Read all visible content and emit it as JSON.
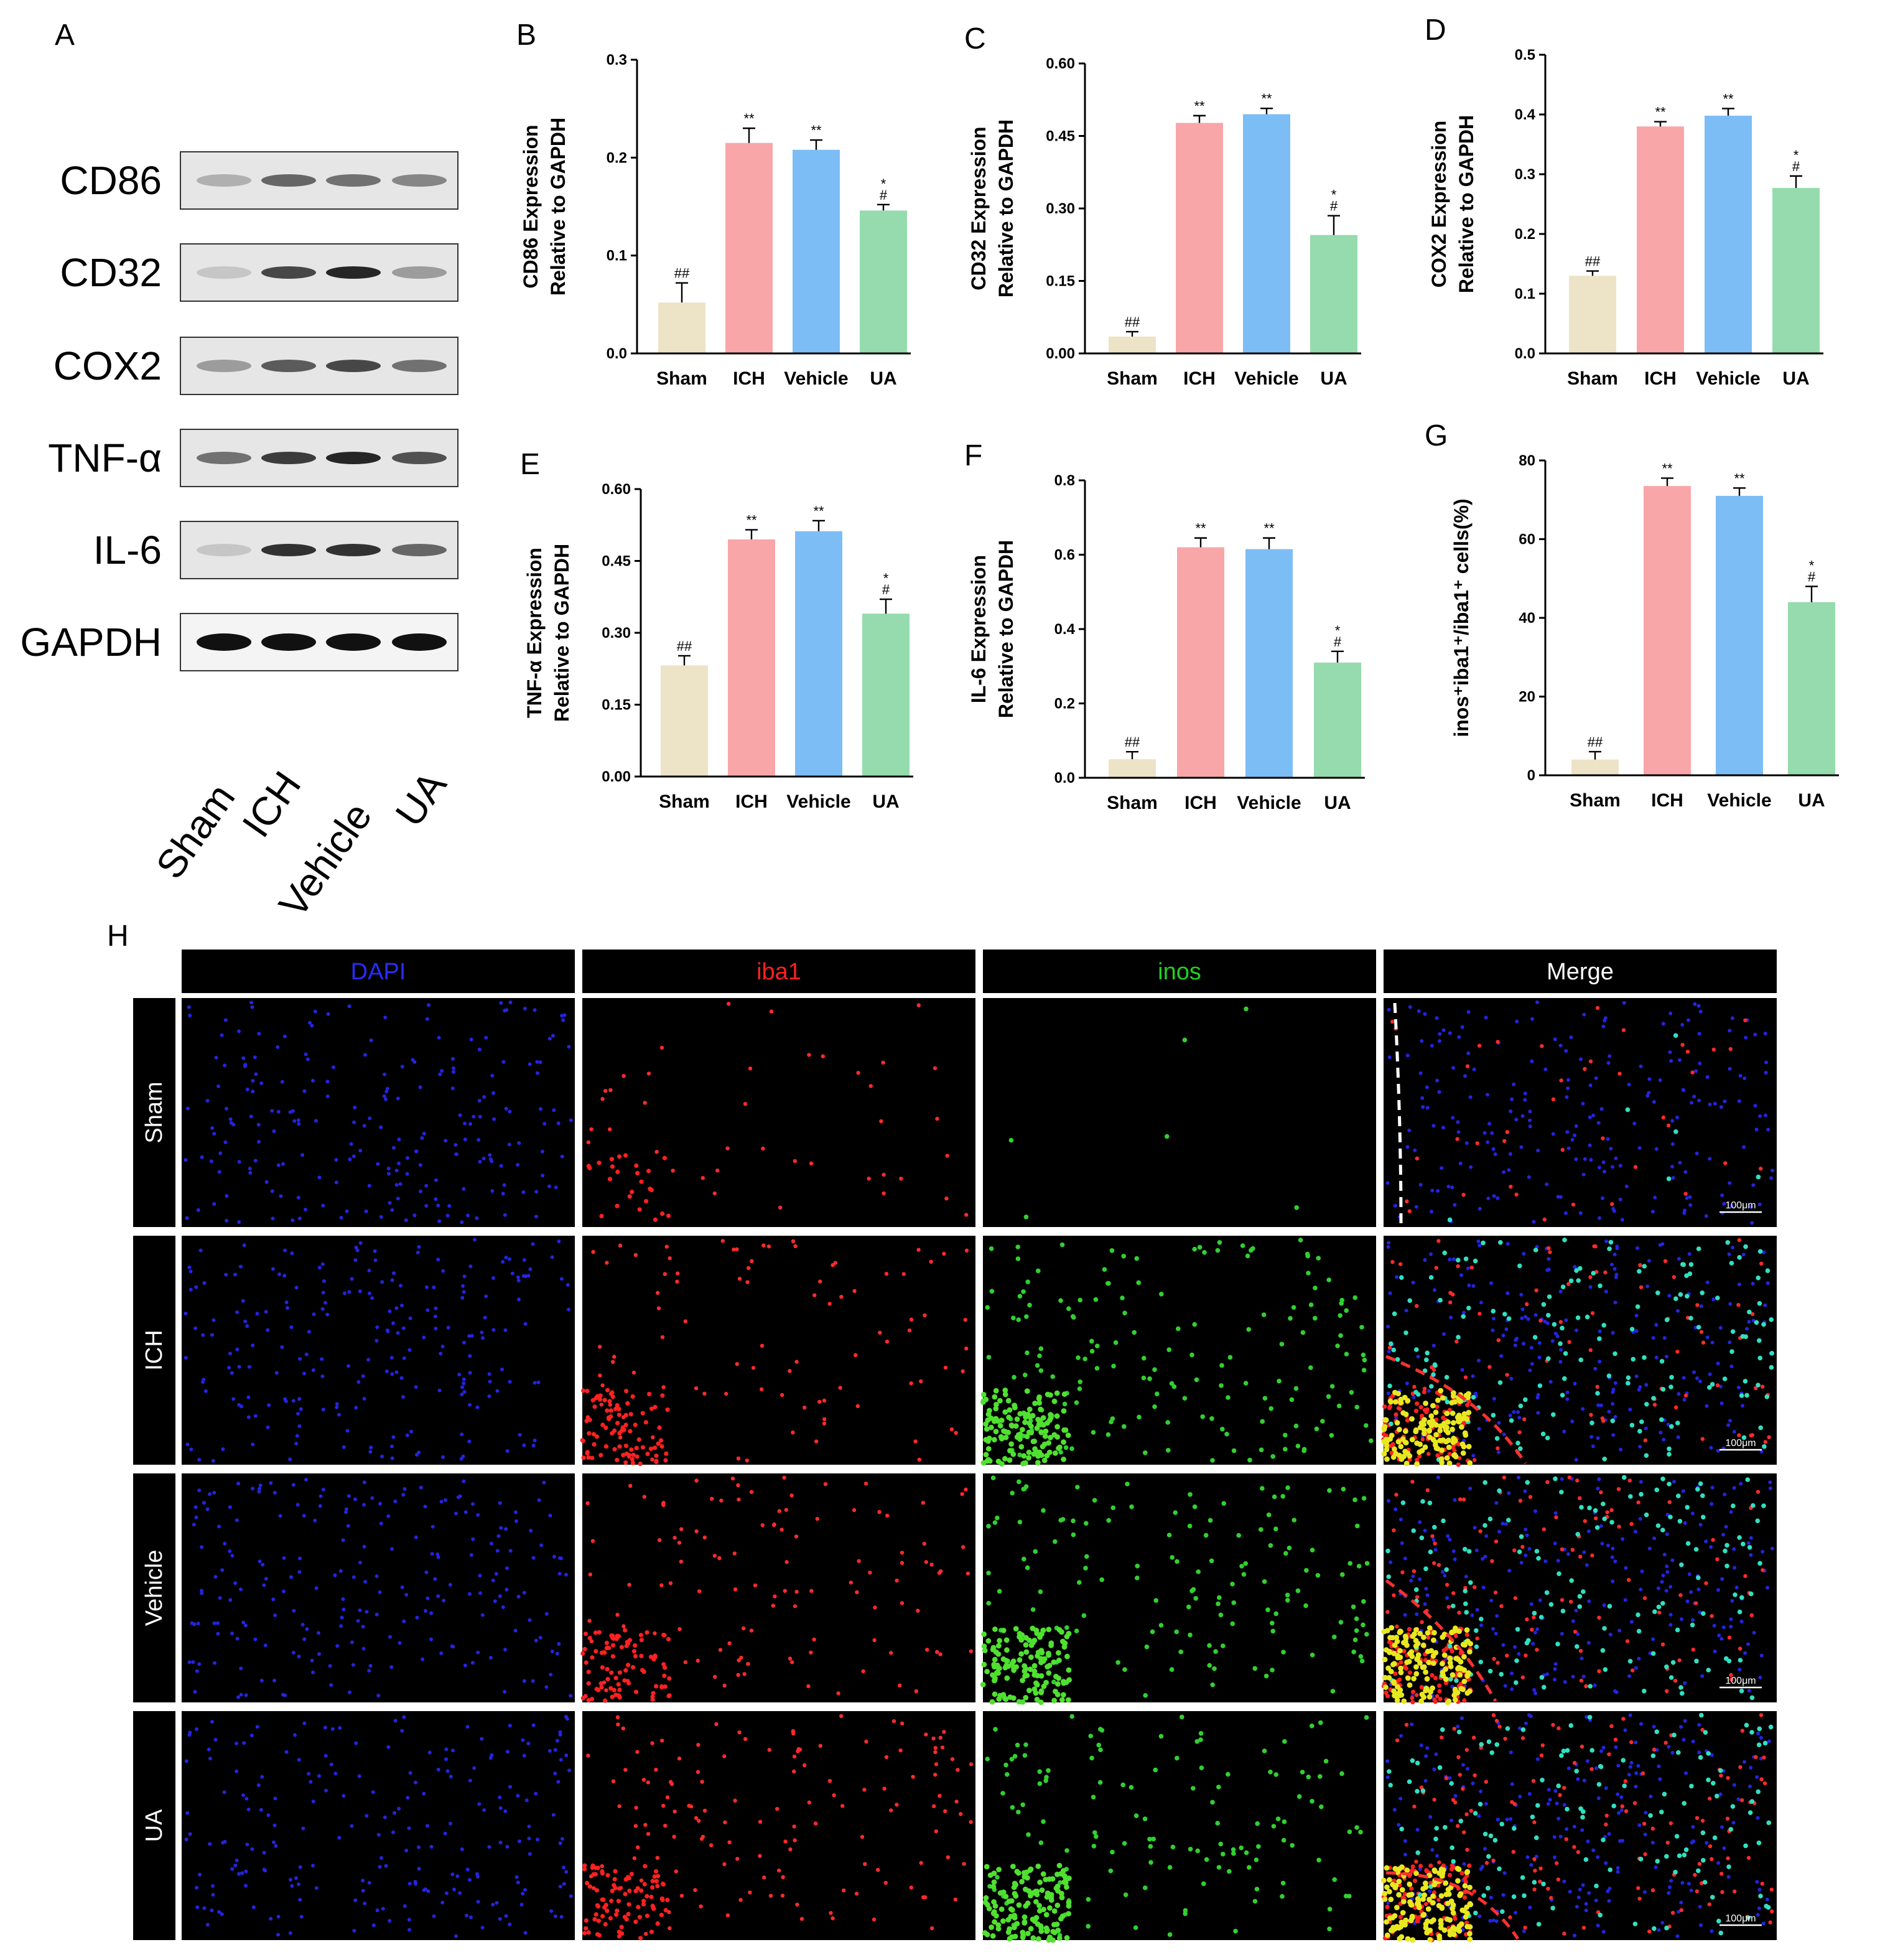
{
  "western_blot": {
    "label": "A",
    "proteins": [
      "CD86",
      "CD32",
      "COX2",
      "TNF-α",
      "IL-6",
      "GAPDH"
    ],
    "lanes": [
      "Sham",
      "ICH",
      "Vehicle",
      "UA"
    ]
  },
  "chart_data": [
    {
      "type": "bar",
      "panel": "B",
      "ylabel": [
        "CD86 Expression",
        "Relative to GAPDH"
      ],
      "categories": [
        "Sham",
        "ICH",
        "Vehicle",
        "UA"
      ],
      "colors": [
        "#ede3c6",
        "#f9a6a9",
        "#7dbdf6",
        "#95dbad"
      ],
      "values": [
        0.052,
        0.215,
        0.208,
        0.146
      ],
      "errors": [
        0.02,
        0.015,
        0.01,
        0.006
      ],
      "annotations": [
        [
          "##"
        ],
        [
          "**"
        ],
        [
          "**"
        ],
        [
          "*",
          "#"
        ]
      ],
      "ylim": [
        0,
        0.3
      ],
      "yticks": [
        {
          "value": 0,
          "label": "0.0"
        },
        0.1,
        0.2,
        0.3
      ]
    },
    {
      "type": "bar",
      "panel": "C",
      "ylabel": [
        "CD32 Expression",
        "Relative to GAPDH"
      ],
      "categories": [
        "Sham",
        "ICH",
        "Vehicle",
        "UA"
      ],
      "colors": [
        "#ede3c6",
        "#f9a6a9",
        "#7dbdf6",
        "#95dbad"
      ],
      "values": [
        0.035,
        0.477,
        0.495,
        0.245
      ],
      "errors": [
        0.01,
        0.015,
        0.012,
        0.04
      ],
      "annotations": [
        [
          "##"
        ],
        [
          "**"
        ],
        [
          "**"
        ],
        [
          "*",
          "#"
        ]
      ],
      "ylim": [
        0,
        0.6
      ],
      "yticks": [
        {
          "value": 0,
          "label": "0.00"
        },
        {
          "value": 0.15,
          "label": "0.15"
        },
        {
          "value": 0.3,
          "label": "0.30"
        },
        {
          "value": 0.45,
          "label": "0.45"
        },
        {
          "value": 0.6,
          "label": "0.60"
        }
      ]
    },
    {
      "type": "bar",
      "panel": "D",
      "ylabel": [
        "COX2 Expression",
        "Relative to GAPDH"
      ],
      "categories": [
        "Sham",
        "ICH",
        "Vehicle",
        "UA"
      ],
      "colors": [
        "#ede3c6",
        "#f9a6a9",
        "#7dbdf6",
        "#95dbad"
      ],
      "values": [
        0.13,
        0.38,
        0.398,
        0.277
      ],
      "errors": [
        0.008,
        0.008,
        0.012,
        0.02
      ],
      "annotations": [
        [
          "##"
        ],
        [
          "**"
        ],
        [
          "**"
        ],
        [
          "*",
          "#"
        ]
      ],
      "ylim": [
        0,
        0.5
      ],
      "yticks": [
        {
          "value": 0,
          "label": "0.0"
        },
        0.1,
        0.2,
        0.3,
        0.4,
        0.5
      ]
    },
    {
      "type": "bar",
      "panel": "E",
      "ylabel": [
        "TNF-α Expression",
        "Relative to GAPDH"
      ],
      "categories": [
        "Sham",
        "ICH",
        "Vehicle",
        "UA"
      ],
      "colors": [
        "#ede3c6",
        "#f9a6a9",
        "#7dbdf6",
        "#95dbad"
      ],
      "values": [
        0.232,
        0.495,
        0.512,
        0.34
      ],
      "errors": [
        0.02,
        0.02,
        0.022,
        0.03
      ],
      "annotations": [
        [
          "##"
        ],
        [
          "**"
        ],
        [
          "**"
        ],
        [
          "*",
          "#"
        ]
      ],
      "ylim": [
        0,
        0.6
      ],
      "yticks": [
        {
          "value": 0,
          "label": "0.00"
        },
        {
          "value": 0.15,
          "label": "0.15"
        },
        {
          "value": 0.3,
          "label": "0.30"
        },
        {
          "value": 0.45,
          "label": "0.45"
        },
        {
          "value": 0.6,
          "label": "0.60"
        }
      ]
    },
    {
      "type": "bar",
      "panel": "F",
      "ylabel": [
        "IL-6 Expression",
        "Relative to GAPDH"
      ],
      "categories": [
        "Sham",
        "ICH",
        "Vehicle",
        "UA"
      ],
      "colors": [
        "#ede3c6",
        "#f9a6a9",
        "#7dbdf6",
        "#95dbad"
      ],
      "values": [
        0.05,
        0.62,
        0.615,
        0.31
      ],
      "errors": [
        0.02,
        0.025,
        0.03,
        0.03
      ],
      "annotations": [
        [
          "##"
        ],
        [
          "**"
        ],
        [
          "**"
        ],
        [
          "*",
          "#"
        ]
      ],
      "ylim": [
        0,
        0.8
      ],
      "yticks": [
        {
          "value": 0,
          "label": "0.0"
        },
        0.2,
        0.4,
        0.6,
        0.8
      ]
    },
    {
      "type": "bar",
      "panel": "G",
      "ylabel": [
        "inos⁺iba1⁺/iba1⁺ cells(%)"
      ],
      "categories": [
        "Sham",
        "ICH",
        "Vehicle",
        "UA"
      ],
      "colors": [
        "#ede3c6",
        "#f9a6a9",
        "#7dbdf6",
        "#95dbad"
      ],
      "values": [
        4,
        73.5,
        71,
        44
      ],
      "errors": [
        2,
        2,
        2,
        4
      ],
      "annotations": [
        [
          "##"
        ],
        [
          "**"
        ],
        [
          "**"
        ],
        [
          "*",
          "#"
        ]
      ],
      "ylim": [
        0,
        80
      ],
      "yticks": [
        0,
        20,
        40,
        60,
        80
      ]
    }
  ],
  "immunofluorescence": {
    "label": "H",
    "channels": [
      "DAPI",
      "iba1",
      "inos",
      "Merge"
    ],
    "groups": [
      "Sham",
      "ICH",
      "Vehicle",
      "UA"
    ],
    "scale_bar": "100μm"
  }
}
